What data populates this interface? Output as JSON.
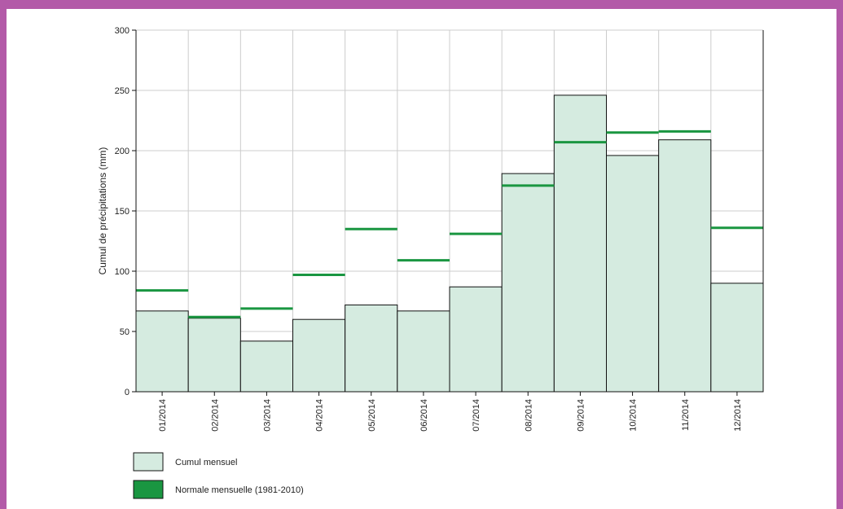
{
  "colors": {
    "frame": "#b35aa8",
    "bar_fill": "#d5ebe0",
    "bar_stroke": "#111111",
    "normal_line": "#1a9641",
    "grid": "#cccccc"
  },
  "chart_data": {
    "type": "bar",
    "categories": [
      "01/2014",
      "02/2014",
      "03/2014",
      "04/2014",
      "05/2014",
      "06/2014",
      "07/2014",
      "08/2014",
      "09/2014",
      "10/2014",
      "11/2014",
      "12/2014"
    ],
    "series": [
      {
        "name": "Cumul mensuel",
        "values": [
          67,
          61,
          42,
          60,
          72,
          67,
          87,
          181,
          246,
          196,
          209,
          90
        ]
      },
      {
        "name": "Normale mensuelle (1981-2010)",
        "values": [
          84,
          62,
          69,
          97,
          135,
          109,
          131,
          171,
          207,
          215,
          216,
          136
        ]
      }
    ],
    "title": "",
    "xlabel": "",
    "ylabel": "Cumul de précipitations (mm)",
    "ylim": [
      0,
      300
    ],
    "yticks": [
      0,
      50,
      100,
      150,
      200,
      250,
      300
    ],
    "grid": true,
    "legend": "bottom-left"
  }
}
